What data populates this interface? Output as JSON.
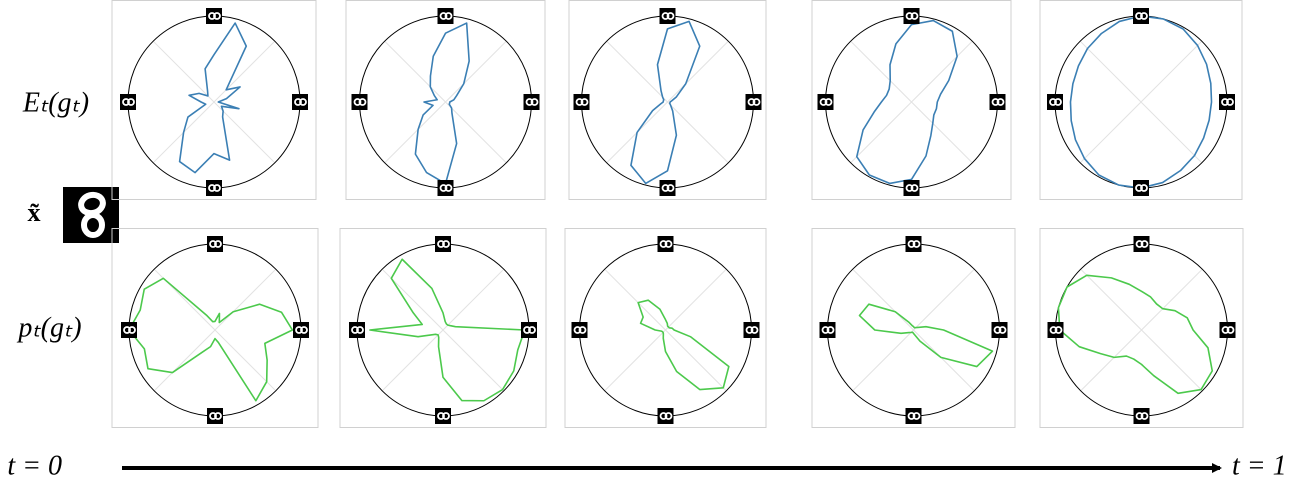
{
  "row_labels": [
    "Eₜ(gₜ)",
    "pₜ(gₜ)"
  ],
  "input_label": "x̃",
  "axis_start": "t = 0",
  "axis_end": "t = 1",
  "chart_data": [
    {
      "type": "polar",
      "color": "#3b7fb4",
      "rlim": [
        0,
        1
      ],
      "thetaticks": [
        45,
        135,
        225,
        315
      ],
      "theta": [
        0,
        15,
        30,
        45,
        60,
        75,
        90,
        105,
        120,
        135,
        150,
        165,
        180,
        195,
        210,
        225,
        240,
        255,
        270,
        285,
        300,
        315,
        330,
        345
      ],
      "values": [
        0.05,
        0.15,
        0.35,
        0.2,
        0.75,
        0.95,
        0.55,
        0.4,
        0.15,
        0.1,
        0.2,
        0.3,
        0.15,
        0.1,
        0.35,
        0.5,
        0.8,
        0.85,
        0.6,
        0.7,
        0.2,
        0.15,
        0.1,
        0.3
      ]
    },
    {
      "type": "polar",
      "color": "#3b7fb4",
      "rlim": [
        0,
        1
      ],
      "thetaticks": [
        45,
        135,
        225,
        315
      ],
      "theta": [
        0,
        15,
        30,
        45,
        60,
        75,
        90,
        105,
        120,
        135,
        150,
        165,
        180,
        195,
        210,
        225,
        240,
        255,
        270,
        285,
        300,
        315,
        330,
        345
      ],
      "values": [
        0.05,
        0.1,
        0.15,
        0.3,
        0.55,
        0.95,
        0.8,
        0.55,
        0.35,
        0.25,
        0.15,
        0.1,
        0.25,
        0.15,
        0.3,
        0.45,
        0.7,
        0.85,
        0.95,
        0.5,
        0.15,
        0.1,
        0.05,
        0.05
      ]
    },
    {
      "type": "polar",
      "color": "#3b7fb4",
      "rlim": [
        0,
        1
      ],
      "thetaticks": [
        45,
        135,
        225,
        315
      ],
      "theta": [
        0,
        15,
        30,
        45,
        60,
        75,
        90,
        105,
        120,
        135,
        150,
        165,
        180,
        195,
        210,
        225,
        240,
        255,
        270,
        285,
        300,
        315,
        330,
        345
      ],
      "values": [
        0.03,
        0.05,
        0.12,
        0.3,
        0.75,
        0.97,
        0.85,
        0.45,
        0.15,
        0.08,
        0.05,
        0.05,
        0.05,
        0.08,
        0.2,
        0.5,
        0.85,
        0.98,
        0.8,
        0.4,
        0.12,
        0.05,
        0.03,
        0.03
      ]
    },
    {
      "type": "polar",
      "color": "#3b7fb4",
      "rlim": [
        0,
        1
      ],
      "thetaticks": [
        45,
        135,
        225,
        315
      ],
      "theta": [
        0,
        15,
        30,
        45,
        60,
        75,
        90,
        105,
        120,
        135,
        150,
        165,
        180,
        195,
        210,
        225,
        240,
        255,
        270,
        285,
        300,
        315,
        330,
        345
      ],
      "values": [
        0.3,
        0.35,
        0.5,
        0.75,
        0.95,
        0.98,
        0.9,
        0.7,
        0.5,
        0.35,
        0.3,
        0.3,
        0.35,
        0.45,
        0.65,
        0.9,
        0.98,
        0.98,
        0.9,
        0.65,
        0.45,
        0.35,
        0.3,
        0.3
      ]
    },
    {
      "type": "polar",
      "color": "#3b7fb4",
      "rlim": [
        0,
        1
      ],
      "thetaticks": [
        45,
        135,
        225,
        315
      ],
      "theta": [
        0,
        15,
        30,
        45,
        60,
        75,
        90,
        105,
        120,
        135,
        150,
        165,
        180,
        195,
        210,
        225,
        240,
        255,
        270,
        285,
        300,
        315,
        330,
        345
      ],
      "values": [
        0.82,
        0.84,
        0.88,
        0.93,
        0.98,
        1.0,
        1.0,
        0.97,
        0.92,
        0.88,
        0.84,
        0.82,
        0.82,
        0.84,
        0.88,
        0.93,
        0.98,
        1.0,
        1.0,
        0.97,
        0.92,
        0.88,
        0.84,
        0.82
      ]
    },
    {
      "type": "polar",
      "color": "#4cc94c",
      "rlim": [
        0,
        1
      ],
      "thetaticks": [
        45,
        135,
        225,
        315
      ],
      "theta": [
        0,
        15,
        30,
        45,
        60,
        75,
        90,
        105,
        120,
        135,
        150,
        165,
        180,
        195,
        210,
        225,
        240,
        255,
        270,
        285,
        300,
        315,
        330,
        345
      ],
      "values": [
        0.9,
        0.8,
        0.6,
        0.3,
        0.1,
        0.2,
        0.1,
        0.1,
        0.2,
        0.85,
        0.95,
        0.9,
        1.0,
        0.85,
        0.9,
        0.7,
        0.3,
        0.2,
        0.1,
        0.15,
        0.95,
        0.85,
        0.7,
        0.6
      ]
    },
    {
      "type": "polar",
      "color": "#4cc94c",
      "rlim": [
        0,
        1
      ],
      "thetaticks": [
        45,
        135,
        225,
        315
      ],
      "theta": [
        0,
        15,
        30,
        45,
        60,
        75,
        90,
        105,
        120,
        135,
        150,
        165,
        180,
        195,
        210,
        225,
        240,
        255,
        270,
        285,
        300,
        315,
        330,
        345
      ],
      "values": [
        0.95,
        0.15,
        0.1,
        0.08,
        0.08,
        0.1,
        0.2,
        0.5,
        0.95,
        0.85,
        0.4,
        0.25,
        0.85,
        0.3,
        0.1,
        0.08,
        0.1,
        0.2,
        0.55,
        0.85,
        0.95,
        0.98,
        0.95,
        0.9
      ]
    },
    {
      "type": "polar",
      "color": "#4cc94c",
      "rlim": [
        0,
        1
      ],
      "thetaticks": [
        45,
        135,
        225,
        315
      ],
      "theta": [
        0,
        15,
        30,
        45,
        60,
        75,
        90,
        105,
        120,
        135,
        150,
        165,
        180,
        195,
        210,
        225,
        240,
        255,
        270,
        285,
        300,
        315,
        330,
        345
      ],
      "values": [
        0.1,
        0.08,
        0.05,
        0.05,
        0.05,
        0.08,
        0.12,
        0.25,
        0.4,
        0.45,
        0.3,
        0.3,
        0.12,
        0.05,
        0.04,
        0.04,
        0.05,
        0.1,
        0.25,
        0.5,
        0.8,
        0.95,
        0.85,
        0.3
      ]
    },
    {
      "type": "polar",
      "color": "#4cc94c",
      "rlim": [
        0,
        1
      ],
      "thetaticks": [
        45,
        135,
        225,
        315
      ],
      "theta": [
        0,
        15,
        30,
        45,
        60,
        75,
        90,
        105,
        120,
        135,
        150,
        165,
        180,
        195,
        210,
        225,
        240,
        255,
        270,
        285,
        300,
        315,
        330,
        345
      ],
      "values": [
        0.35,
        0.15,
        0.06,
        0.04,
        0.03,
        0.03,
        0.04,
        0.05,
        0.1,
        0.3,
        0.6,
        0.65,
        0.45,
        0.15,
        0.06,
        0.04,
        0.03,
        0.03,
        0.04,
        0.06,
        0.15,
        0.45,
        0.85,
        0.95
      ]
    },
    {
      "type": "polar",
      "color": "#4cc94c",
      "rlim": [
        0,
        1
      ],
      "thetaticks": [
        45,
        135,
        225,
        315
      ],
      "theta": [
        0,
        15,
        30,
        45,
        60,
        75,
        90,
        105,
        120,
        135,
        150,
        165,
        180,
        195,
        210,
        225,
        240,
        255,
        270,
        285,
        300,
        315,
        330,
        345
      ],
      "values": [
        0.6,
        0.55,
        0.45,
        0.35,
        0.35,
        0.4,
        0.45,
        0.55,
        0.7,
        0.9,
        1.0,
        1.0,
        0.95,
        0.75,
        0.55,
        0.45,
        0.35,
        0.35,
        0.4,
        0.55,
        0.85,
        0.98,
        0.95,
        0.8
      ]
    }
  ]
}
